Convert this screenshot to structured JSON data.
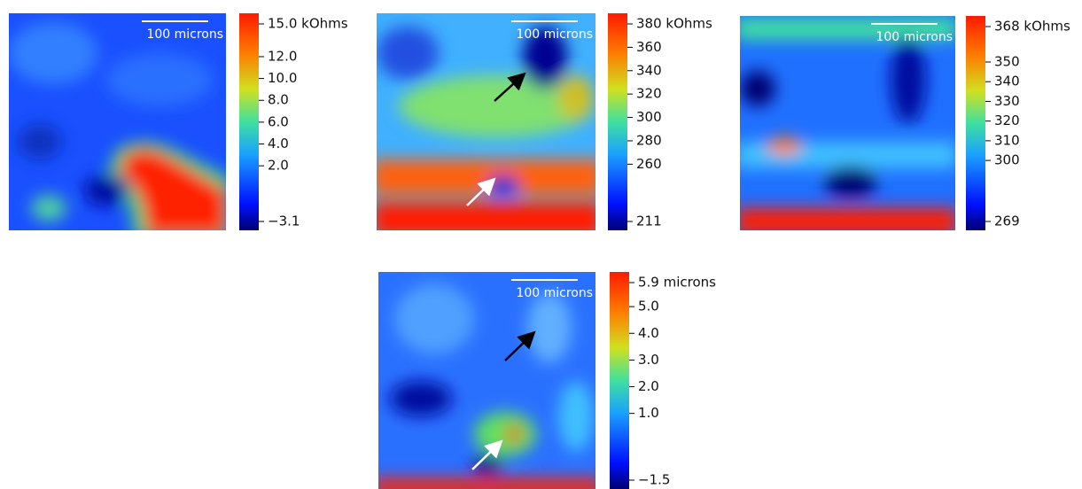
{
  "chart_data": [
    {
      "type": "heatmap",
      "scale_bar": "100 microns",
      "ylim": [
        -3.1,
        15.0
      ],
      "yticks": [
        {
          "value": 15.0,
          "label": "15.0 kOhms"
        },
        {
          "value": 12.0,
          "label": "12.0"
        },
        {
          "value": 10.0,
          "label": "10.0"
        },
        {
          "value": 8.0,
          "label": "8.0"
        },
        {
          "value": 6.0,
          "label": "6.0"
        },
        {
          "value": 4.0,
          "label": "4.0"
        },
        {
          "value": 2.0,
          "label": "2.0"
        },
        {
          "value": -3.1,
          "label": "−3.1"
        }
      ]
    },
    {
      "type": "heatmap",
      "scale_bar": "100 microns",
      "ylim": [
        211,
        380
      ],
      "yticks": [
        {
          "value": 380,
          "label": "380 kOhms"
        },
        360,
        340,
        320,
        300,
        280,
        260,
        211
      ]
    },
    {
      "type": "heatmap",
      "scale_bar": "100 microns",
      "ylim": [
        269,
        368
      ],
      "yticks": [
        {
          "value": 368,
          "label": "368 kOhms"
        },
        350,
        340,
        330,
        320,
        310,
        300,
        269
      ]
    },
    {
      "type": "heatmap",
      "scale_bar": "100 microns",
      "ylim": [
        -1.5,
        5.9
      ],
      "yticks": [
        {
          "value": 5.9,
          "label": "5.9 microns"
        },
        {
          "value": 5.0,
          "label": "5.0"
        },
        {
          "value": 4.0,
          "label": "4.0"
        },
        {
          "value": 3.0,
          "label": "3.0"
        },
        {
          "value": 2.0,
          "label": "2.0"
        },
        {
          "value": 1.0,
          "label": "1.0"
        },
        {
          "value": -1.5,
          "label": "−1.5"
        }
      ]
    }
  ]
}
